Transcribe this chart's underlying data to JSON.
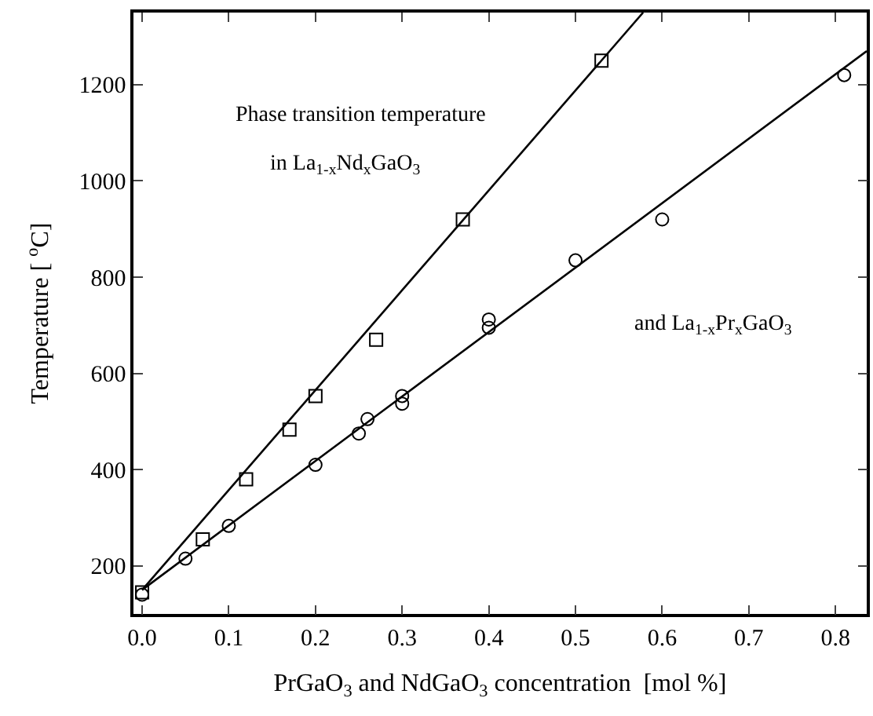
{
  "chart_data": {
    "type": "scatter",
    "xlabel": "PrGaO$_{3}$ and NdGaO$_{3}$ concentration  [mol %]",
    "ylabel": "Temperature [ $^{o}$C]",
    "annotations": [
      "Phase transition temperature",
      "in La$_{1-x}$Nd$_{x}$GaO$_{3}$",
      "and La$_{1-x}$Pr$_{x}$GaO$_{3}$"
    ],
    "xlim": [
      -0.01,
      0.836
    ],
    "xticks": [
      {
        "value": 0,
        "label": "0.0"
      },
      0.1,
      0.2,
      0.3,
      0.4,
      0.5,
      0.6,
      0.7,
      0.8
    ],
    "ylim": [
      100,
      1350
    ],
    "yticks": [
      200,
      400,
      600,
      800,
      1000,
      1200
    ],
    "series": [
      {
        "marker": "square",
        "color": "#000000",
        "x": [
          0,
          0.07,
          0.12,
          0.17,
          0.2,
          0.27,
          0.37,
          0.53
        ],
        "values": [
          145,
          255,
          380,
          483,
          553,
          670,
          920,
          1250
        ]
      },
      {
        "marker": "circle",
        "color": "#000000",
        "x": [
          0,
          0.05,
          0.1,
          0.2,
          0.25,
          0.26,
          0.3,
          0.3,
          0.4,
          0.4,
          0.5,
          0.6,
          0.81
        ],
        "values": [
          140,
          215,
          283,
          410,
          475,
          505,
          537,
          553,
          695,
          712,
          835,
          920,
          1220
        ]
      },
      {
        "type": "line",
        "line_style": "solid",
        "color": "#000000",
        "x": [
          0,
          0.578
        ],
        "values": [
          150,
          1350
        ]
      },
      {
        "type": "line",
        "line_style": "solid",
        "color": "#000000",
        "x": [
          0,
          0.836
        ],
        "values": [
          150,
          1270
        ]
      }
    ]
  }
}
